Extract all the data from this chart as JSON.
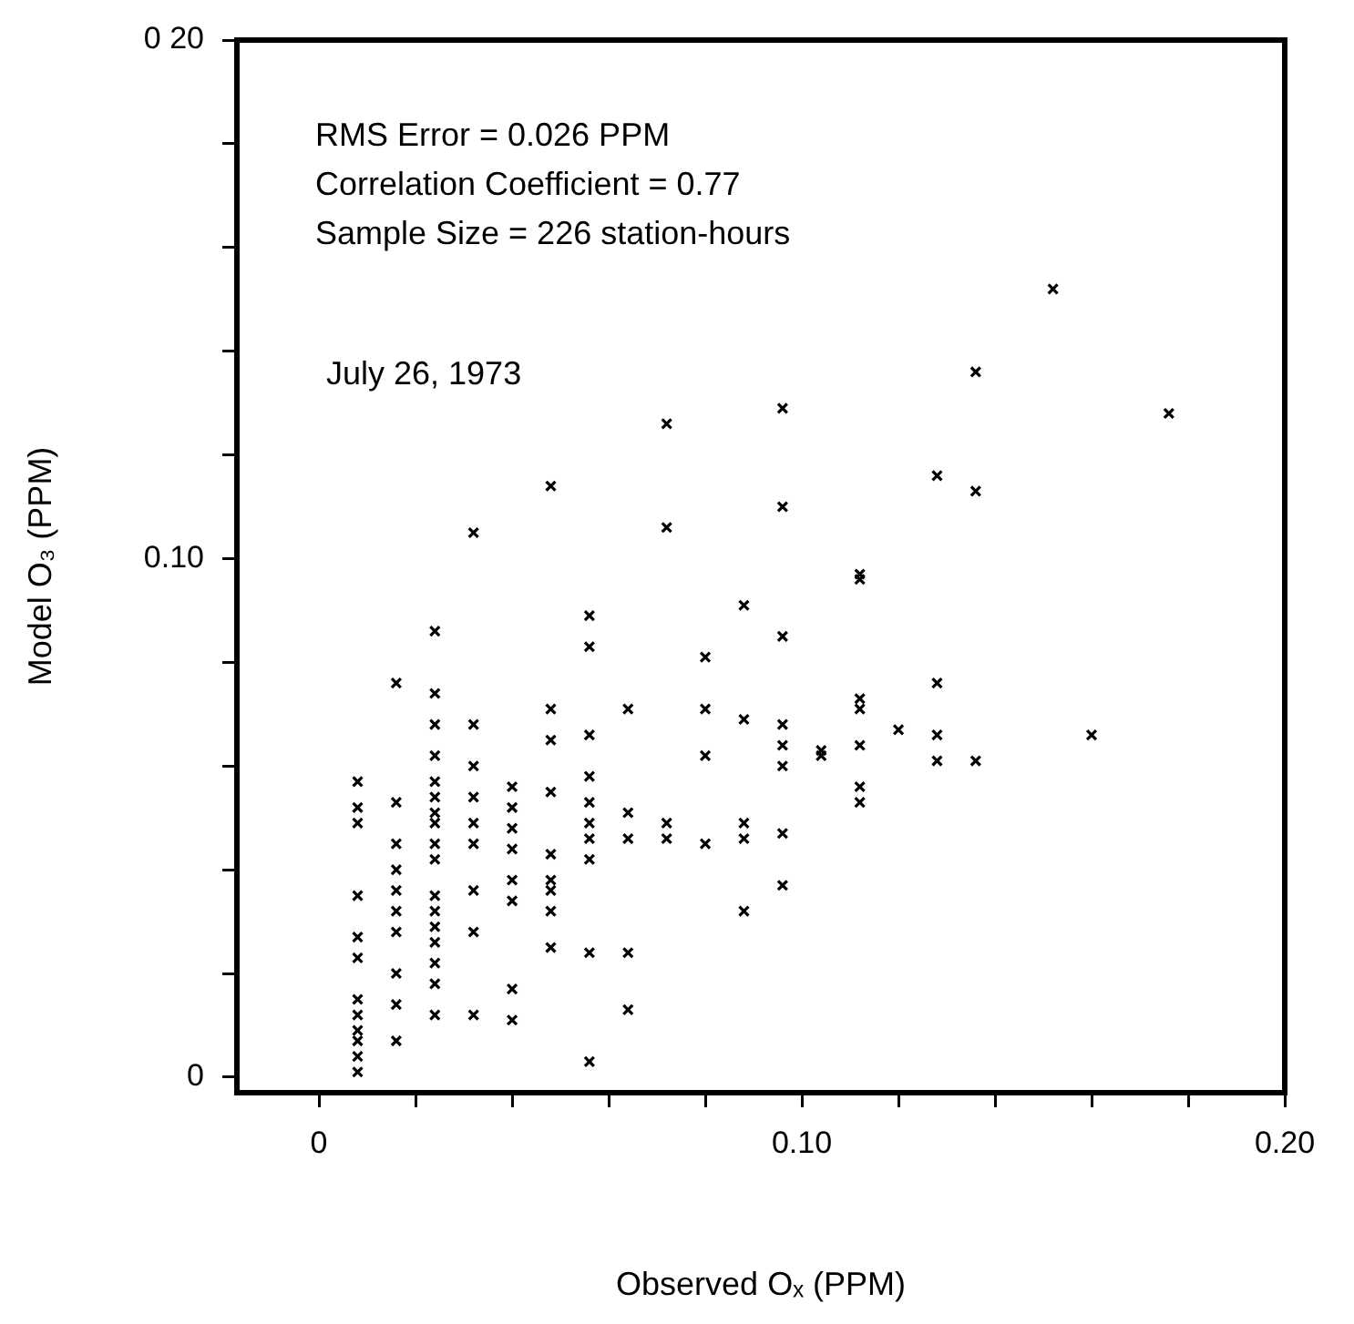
{
  "chart_data": {
    "type": "scatter",
    "xlabel": "Observed Oₓ (PPM)",
    "ylabel": "Model O₃ (PPM)",
    "annotations": [
      "RMS Error = 0.026 PPM",
      "Correlation Coefficient = 0.77",
      "Sample Size = 226 station-hours",
      "July 26, 1973"
    ],
    "xlim": [
      -0.017,
      0.2
    ],
    "ylim": [
      -0.003,
      0.2
    ],
    "xticks": [
      0,
      {
        "value": 0.02,
        "label": null
      },
      {
        "value": 0.04,
        "label": null
      },
      {
        "value": 0.06,
        "label": null
      },
      {
        "value": 0.08,
        "label": null
      },
      {
        "value": 0.1,
        "label": "0.10"
      },
      {
        "value": 0.12,
        "label": null
      },
      {
        "value": 0.14,
        "label": null
      },
      {
        "value": 0.16,
        "label": null
      },
      {
        "value": 0.18,
        "label": null
      },
      {
        "value": 0.2,
        "label": "0.20"
      }
    ],
    "yticks": [
      0,
      {
        "value": 0.02,
        "label": null
      },
      {
        "value": 0.04,
        "label": null
      },
      {
        "value": 0.06,
        "label": null
      },
      {
        "value": 0.08,
        "label": null
      },
      {
        "value": 0.1,
        "label": "0.10"
      },
      {
        "value": 0.12,
        "label": null
      },
      {
        "value": 0.14,
        "label": null
      },
      {
        "value": 0.16,
        "label": null
      },
      {
        "value": 0.18,
        "label": null
      },
      {
        "value": 0.2,
        "label": "0 20"
      }
    ],
    "grid": false,
    "legend": false,
    "marker": "cross",
    "series": [
      {
        "color": "#000000",
        "x": [
          0.008,
          0.008,
          0.008,
          0.008,
          0.008,
          0.008,
          0.008,
          0.008,
          0.008,
          0.008,
          0.008,
          0.008,
          0.016,
          0.016,
          0.016,
          0.016,
          0.016,
          0.016,
          0.016,
          0.016,
          0.016,
          0.016,
          0.024,
          0.024,
          0.024,
          0.024,
          0.024,
          0.024,
          0.024,
          0.024,
          0.024,
          0.024,
          0.024,
          0.024,
          0.024,
          0.024,
          0.024,
          0.024,
          0.024,
          0.032,
          0.032,
          0.032,
          0.032,
          0.032,
          0.032,
          0.032,
          0.032,
          0.032,
          0.04,
          0.04,
          0.04,
          0.04,
          0.04,
          0.04,
          0.04,
          0.04,
          0.048,
          0.048,
          0.048,
          0.048,
          0.048,
          0.048,
          0.048,
          0.048,
          0.048,
          0.056,
          0.056,
          0.056,
          0.056,
          0.056,
          0.056,
          0.056,
          0.056,
          0.056,
          0.056,
          0.064,
          0.064,
          0.064,
          0.064,
          0.064,
          0.072,
          0.072,
          0.072,
          0.072,
          0.08,
          0.08,
          0.08,
          0.08,
          0.088,
          0.088,
          0.088,
          0.088,
          0.088,
          0.096,
          0.096,
          0.096,
          0.096,
          0.096,
          0.096,
          0.096,
          0.096,
          0.104,
          0.104,
          0.112,
          0.112,
          0.112,
          0.112,
          0.112,
          0.112,
          0.112,
          0.12,
          0.128,
          0.128,
          0.128,
          0.128,
          0.136,
          0.136,
          0.136,
          0.152,
          0.16,
          0.176
        ],
        "values": [
          0.057,
          0.052,
          0.049,
          0.035,
          0.027,
          0.023,
          0.015,
          0.012,
          0.009,
          0.007,
          0.004,
          0.001,
          0.076,
          0.053,
          0.045,
          0.04,
          0.036,
          0.032,
          0.028,
          0.02,
          0.014,
          0.007,
          0.086,
          0.074,
          0.068,
          0.062,
          0.057,
          0.054,
          0.051,
          0.049,
          0.045,
          0.042,
          0.035,
          0.032,
          0.029,
          0.026,
          0.022,
          0.018,
          0.012,
          0.105,
          0.068,
          0.06,
          0.054,
          0.049,
          0.045,
          0.036,
          0.028,
          0.012,
          0.056,
          0.052,
          0.048,
          0.044,
          0.038,
          0.034,
          0.017,
          0.011,
          0.114,
          0.071,
          0.065,
          0.055,
          0.043,
          0.038,
          0.036,
          0.032,
          0.025,
          0.089,
          0.083,
          0.066,
          0.058,
          0.053,
          0.049,
          0.046,
          0.042,
          0.024,
          0.003,
          0.071,
          0.051,
          0.046,
          0.024,
          0.013,
          0.126,
          0.106,
          0.049,
          0.046,
          0.081,
          0.071,
          0.062,
          0.045,
          0.091,
          0.069,
          0.049,
          0.046,
          0.032,
          0.129,
          0.11,
          0.085,
          0.068,
          0.064,
          0.06,
          0.047,
          0.037,
          0.063,
          0.062,
          0.097,
          0.073,
          0.071,
          0.064,
          0.056,
          0.053,
          0.096,
          0.067,
          0.116,
          0.076,
          0.066,
          0.061,
          0.136,
          0.113,
          0.061,
          0.152,
          0.066,
          0.128
        ]
      }
    ]
  }
}
